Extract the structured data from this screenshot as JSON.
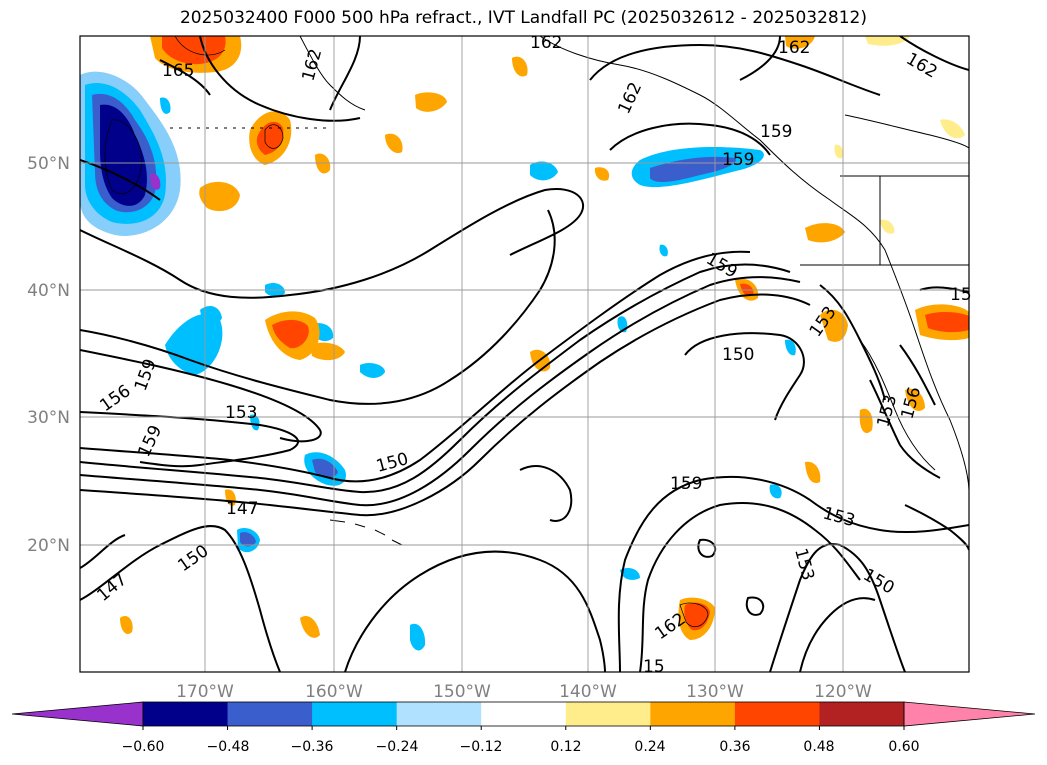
{
  "title": "2025032400 F000 500 hPa refract., IVT Landfall PC (2025032612 - 2025032812)",
  "map": {
    "lon_ticks": [
      "170°W",
      "160°W",
      "150°W",
      "140°W",
      "130°W",
      "120°W"
    ],
    "lat_ticks": [
      "50°N",
      "40°N",
      "30°N",
      "20°N"
    ],
    "gridlines": true
  },
  "contour_labels": [
    {
      "text": "165"
    },
    {
      "text": "162"
    },
    {
      "text": "162"
    },
    {
      "text": "162"
    },
    {
      "text": "162"
    },
    {
      "text": "162"
    },
    {
      "text": "159"
    },
    {
      "text": "159"
    },
    {
      "text": "159"
    },
    {
      "text": "159"
    },
    {
      "text": "159"
    },
    {
      "text": "159"
    },
    {
      "text": "156"
    },
    {
      "text": "156"
    },
    {
      "text": "153"
    },
    {
      "text": "153"
    },
    {
      "text": "153"
    },
    {
      "text": "153"
    },
    {
      "text": "153"
    },
    {
      "text": "150"
    },
    {
      "text": "150"
    },
    {
      "text": "150"
    },
    {
      "text": "150"
    },
    {
      "text": "147"
    },
    {
      "text": "147"
    },
    {
      "text": "15"
    },
    {
      "text": "15"
    },
    {
      "text": "162"
    }
  ],
  "colorbar": {
    "tick_labels": [
      "−0.60",
      "−0.48",
      "−0.36",
      "−0.24",
      "−0.12",
      "0.12",
      "0.24",
      "0.36",
      "0.48",
      "0.60"
    ],
    "colors": [
      "#9932cc",
      "#00008b",
      "#3a5fcd",
      "#00bfff",
      "#b0e2ff",
      "#ffffff",
      "#ffec8b",
      "#ffa500",
      "#ff4500",
      "#b22222",
      "#ff82ab"
    ],
    "extend": "both"
  }
}
